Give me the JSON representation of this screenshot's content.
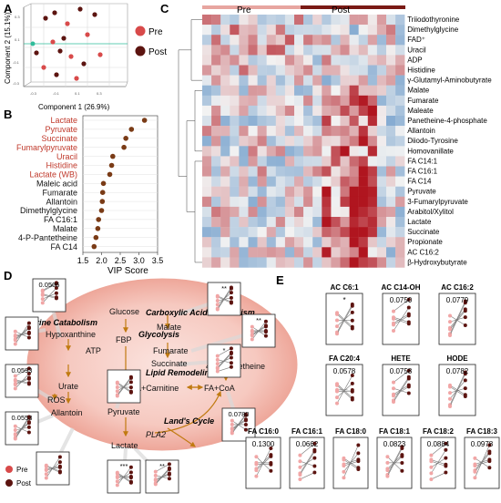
{
  "panel_labels": {
    "a": "A",
    "b": "B",
    "c": "C",
    "d": "D",
    "e": "E"
  },
  "legend": {
    "pre": "Pre",
    "post": "Post"
  },
  "colors": {
    "pre": "#d84a4a",
    "post": "#5c1410",
    "pre_light": "#f1a6a6",
    "heat_low": "#2f73b7",
    "heat_mid": "#f2f2f2",
    "heat_high": "#b0151f",
    "pathway": "#c07a10",
    "accent_red": "#c0392b"
  },
  "chart_data": [
    {
      "panel": "A",
      "type": "scatter",
      "xlabel": "Component 1 (26.9%)",
      "ylabel": "Component 2 (15.1%)",
      "series": [
        {
          "name": "Pre"
        },
        {
          "name": "Post"
        }
      ]
    },
    {
      "panel": "B",
      "type": "scatter",
      "title": "",
      "xlabel": "VIP Score",
      "xlim": [
        1.5,
        3.5
      ],
      "xticks": [
        "1.5",
        "2.0",
        "2.5",
        "3.0",
        "3.5"
      ],
      "categories": [
        "Lactate",
        "Pyruvate",
        "Succinate",
        "Fumarylpyruvate",
        "Uracil",
        "Histidine",
        "Lactate (WB)",
        "Maleic acid",
        "Fumarate",
        "Allantoin",
        "Dimethylglycine",
        "FA C16:1",
        "Malate",
        "4-P-Pantetheine",
        "FA C14"
      ],
      "values": [
        3.15,
        2.8,
        2.65,
        2.6,
        2.3,
        2.27,
        2.22,
        2.05,
        2.03,
        2.02,
        2.0,
        1.92,
        1.9,
        1.85,
        1.8
      ],
      "highlight": [
        "Lactate",
        "Pyruvate",
        "Succinate",
        "Fumarylpyruvate",
        "Uracil",
        "Histidine",
        "Lactate (WB)"
      ]
    },
    {
      "panel": "C",
      "type": "heatmap",
      "groups": [
        "Pre",
        "Post"
      ],
      "rows": [
        "Triiodothyronine",
        "Dimethylglycine",
        "FAD⁺",
        "Uracil",
        "ADP",
        "Histidine",
        "γ-Glutamyl-Aminobutyrate",
        "Malate",
        "Fumarate",
        "Maleate",
        "Panetheine-4-phosphate",
        "Allantoin",
        "Diiodo-Tyrosine",
        "Homovanillate",
        "FA C14:1",
        "FA C16:1",
        "FA C14",
        "Pyruvate",
        "3-Fumarylpyruvate",
        "Arabitol/Xylitol",
        "Lactate",
        "Succinate",
        "Propionate",
        "AC C16:2",
        "β-Hydroxybutyrate"
      ]
    },
    {
      "panel": "E",
      "type": "line",
      "x": [
        "Pre",
        "Post"
      ],
      "series": [
        {
          "name": "AC C6:1",
          "p": "*"
        },
        {
          "name": "AC C14-OH",
          "p": "0.0750"
        },
        {
          "name": "AC C16:2",
          "p": "0.0779"
        },
        {
          "name": "FA C20:4",
          "p": "0.0578"
        },
        {
          "name": "HETE",
          "p": "0.0758"
        },
        {
          "name": "HODE",
          "p": "0.0782"
        },
        {
          "name": "FA C16:0",
          "p": "0.1300"
        },
        {
          "name": "FA C16:1",
          "p": "0.0662"
        },
        {
          "name": "FA C18:0",
          "p": ""
        },
        {
          "name": "FA C18:1",
          "p": "0.0823"
        },
        {
          "name": "FA C18:2",
          "p": "0.0884"
        },
        {
          "name": "FA C18:3",
          "p": "0.0978"
        }
      ]
    }
  ],
  "pathway": {
    "glucose": "Glucose",
    "fbp": "FBP",
    "pyruvate": "Pyruvate",
    "lactate": "Lactate",
    "atp": "ATP",
    "hypoxanthine": "Hypoxanthine",
    "urate": "Urate",
    "ros": "ROS",
    "allantoin": "Allantoin",
    "malate": "Malate",
    "fumarate": "Fumarate",
    "succinate": "Succinate",
    "pantetheine": "4-P-Pantetheine",
    "fa_carnitine": "FA+Carnitine",
    "fa_coa": "FA+CoA",
    "pla2": "PLA2",
    "purine_catabolism": "Purine Catabolism",
    "glycolysis": "Glycolysis",
    "carboxylic_acid": "Carboxylic Acid Metabolism",
    "lipid_remodeling": "Lipid Remodeling",
    "lands_cycle": "Land's Cycle",
    "insets": [
      {
        "label": "0.0506"
      },
      {
        "label": ""
      },
      {
        "label": ""
      },
      {
        "label": "0.0593"
      },
      {
        "label": "0.0553"
      },
      {
        "label": "***"
      },
      {
        "label": "**"
      },
      {
        "label": "**"
      },
      {
        "label": "**"
      },
      {
        "label": "*"
      },
      {
        "label": ""
      },
      {
        "label": "0.0780"
      }
    ]
  }
}
